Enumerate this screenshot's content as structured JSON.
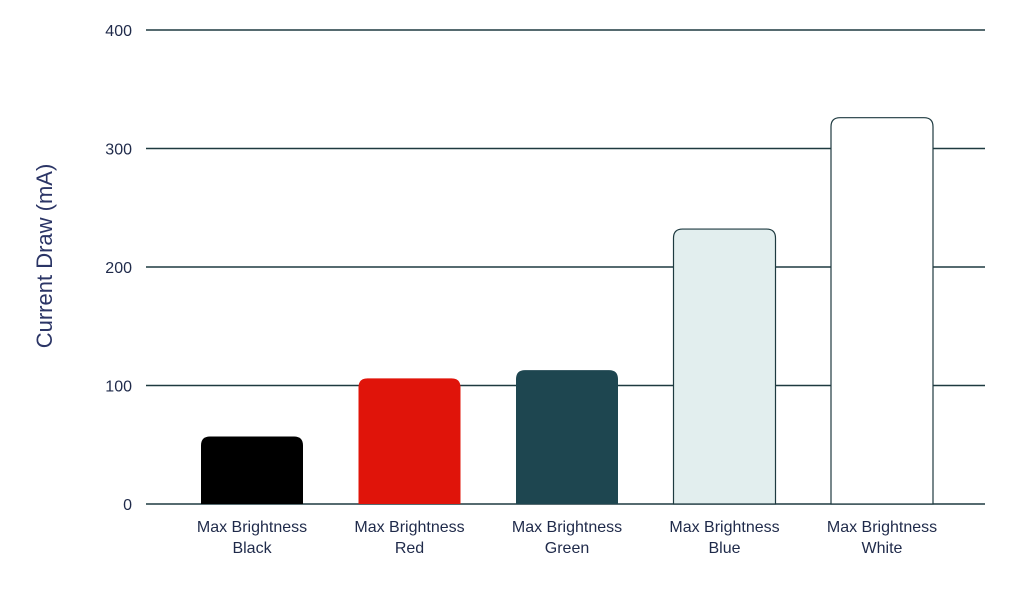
{
  "chart_data": {
    "type": "bar",
    "title": "",
    "xlabel": "",
    "ylabel": "Current Draw (mA)",
    "ylim": [
      0,
      400
    ],
    "yticks": [
      0,
      100,
      200,
      300,
      400
    ],
    "grid": true,
    "categories": [
      [
        "Max Brightness",
        "Black"
      ],
      [
        "Max Brightness",
        "Red"
      ],
      [
        "Max Brightness",
        "Green"
      ],
      [
        "Max Brightness",
        "Blue"
      ],
      [
        "Max Brightness",
        "White"
      ]
    ],
    "values": [
      57,
      106,
      113,
      232,
      326
    ],
    "colors": [
      "#000000",
      "#e0140a",
      "#1e4650",
      "#e2eeee",
      "#ffffff"
    ],
    "outline_color": "#1e3a40"
  }
}
